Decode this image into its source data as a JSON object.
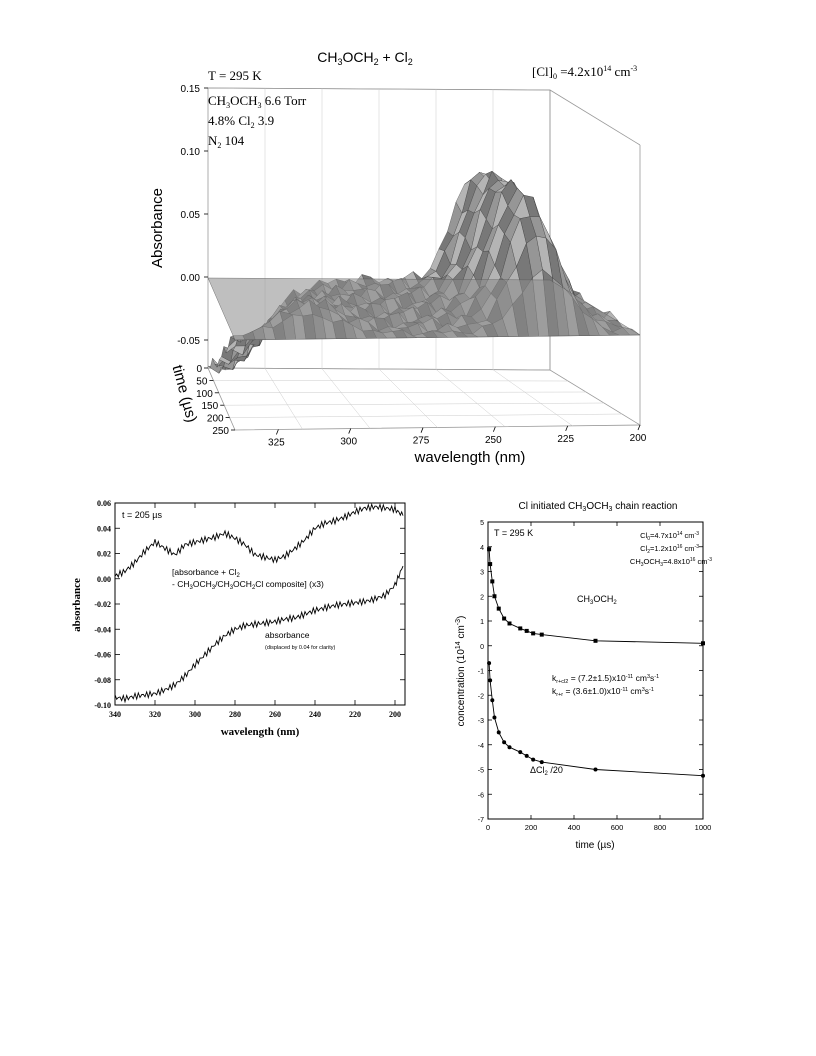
{
  "chart_data": [
    {
      "type": "surface",
      "title_parts": {
        "a": "CH",
        "a_sub": "3",
        "b": "OCH",
        "b_sub": "2",
        "c": " + Cl",
        "c_sub": "2"
      },
      "annotations": {
        "temperature": "T = 295 K",
        "cl0_pre": "[Cl]",
        "cl0_sub": "0",
        "cl0_mid": " =4.2x10",
        "cl0_sup": "14",
        "cl0_post": " cm",
        "cl0_sup2": "-3",
        "mix_line1_a": "CH",
        "mix_line1_sub1": "3",
        "mix_line1_b": "OCH",
        "mix_line1_sub2": "3",
        "mix_line1_c": "  6.6 Torr",
        "mix_line2_a": "4.8% Cl",
        "mix_line2_sub": "2",
        "mix_line2_b": "  3.9",
        "mix_line3": "N",
        "mix_line3_sub": "2",
        "mix_line3_b": "  104"
      },
      "zlabel": "Absorbance",
      "ylabel": "time (µs)",
      "xlabel": "wavelength (nm)",
      "z_ticks": [
        "0.15",
        "0.10",
        "0.05",
        "0.00",
        "-0.05"
      ],
      "z_range": [
        -0.05,
        0.15
      ],
      "time_ticks": [
        "0",
        "50",
        "100",
        "150",
        "200",
        "250"
      ],
      "wavelength_ticks": [
        "325",
        "300",
        "275",
        "250",
        "225",
        "200"
      ],
      "wavelength_range": [
        340,
        200
      ],
      "time_range": [
        0,
        250
      ]
    },
    {
      "type": "line",
      "annotation": "t = 205 µs",
      "xlabel": "wavelength (nm)",
      "ylabel": "absorbance",
      "xlim": [
        340,
        195
      ],
      "ylim": [
        -0.1,
        0.06
      ],
      "x_ticks": [
        "340",
        "320",
        "300",
        "280",
        "260",
        "240",
        "220",
        "200"
      ],
      "y_ticks": [
        "0.06",
        "0.04",
        "0.02",
        "0.00",
        "-0.02",
        "-0.04",
        "-0.06",
        "-0.08",
        "-0.10"
      ],
      "series": [
        {
          "name_line1_a": "[absorbance + Cl",
          "name_line1_sub": "2",
          "name_line2_a": " - CH",
          "name_line2_sub1": "3",
          "name_line2_b": "OCH",
          "name_line2_sub2": "3",
          "name_line2_c": "/CH",
          "name_line2_sub3": "3",
          "name_line2_d": "OCH",
          "name_line2_sub4": "2",
          "name_line2_e": "Cl composite] (x3)",
          "x": [
            340,
            335,
            330,
            325,
            320,
            315,
            310,
            305,
            300,
            295,
            290,
            285,
            280,
            275,
            270,
            265,
            260,
            255,
            250,
            245,
            240,
            235,
            230,
            225,
            220,
            215,
            210,
            205,
            200,
            196
          ],
          "y": [
            0.002,
            0.006,
            0.013,
            0.022,
            0.029,
            0.024,
            0.019,
            0.027,
            0.029,
            0.031,
            0.033,
            0.036,
            0.032,
            0.027,
            0.019,
            0.017,
            0.015,
            0.018,
            0.024,
            0.031,
            0.04,
            0.044,
            0.046,
            0.049,
            0.053,
            0.056,
            0.057,
            0.056,
            0.055,
            0.05
          ]
        },
        {
          "name": "absorbance",
          "note": "(displaced by 0.04 for clarity)",
          "x": [
            340,
            335,
            330,
            325,
            320,
            315,
            310,
            305,
            300,
            295,
            290,
            285,
            280,
            275,
            270,
            265,
            260,
            255,
            250,
            245,
            240,
            235,
            230,
            225,
            220,
            215,
            210,
            205,
            200,
            196
          ],
          "y": [
            -0.094,
            -0.095,
            -0.093,
            -0.092,
            -0.091,
            -0.088,
            -0.084,
            -0.077,
            -0.068,
            -0.06,
            -0.052,
            -0.045,
            -0.04,
            -0.037,
            -0.036,
            -0.035,
            -0.034,
            -0.032,
            -0.031,
            -0.028,
            -0.025,
            -0.023,
            -0.021,
            -0.02,
            -0.019,
            -0.018,
            -0.016,
            -0.013,
            -0.005,
            0.01
          ]
        }
      ]
    },
    {
      "type": "scatter",
      "title_a": "Cl initiated CH",
      "title_sub1": "3",
      "title_b": "OCH",
      "title_sub2": "3",
      "title_c": " chain reaction",
      "annotations": {
        "temperature": "T = 295 K",
        "cl0_a": "Cl",
        "cl0_sub": "0",
        "cl0_b": "=4.7x10",
        "cl0_sup": "14",
        "cl0_c": " cm",
        "cl0_sup2": "-3",
        "cl2_a": "Cl",
        "cl2_sub": "2",
        "cl2_b": "=1.2x10",
        "cl2_sup": "16",
        "cl2_c": " cm",
        "cl2_sup2": "-3",
        "dme_a": "CH",
        "dme_sub1": "3",
        "dme_b": "OCH",
        "dme_sub2": "3",
        "dme_c": "=4.8x10",
        "dme_sup": "16",
        "dme_d": " cm",
        "dme_sup2": "-3",
        "k1_a": "k",
        "k1_sub": "r+cl2",
        "k1_b": " = (7.2±1.5)x10",
        "k1_sup": "-11",
        "k1_c": " cm",
        "k1_sup2": "3",
        "k1_d": "s",
        "k1_sup3": "-1",
        "k2_a": "k",
        "k2_sub": "r+r",
        "k2_b": " = (3.6±1.0)x10",
        "k2_sup": "-11",
        "k2_c": " cm",
        "k2_sup2": "3",
        "k2_d": "s",
        "k2_sup3": "-1"
      },
      "xlabel": "time (µs)",
      "ylabel_a": "concentration (10",
      "ylabel_sup": "14",
      "ylabel_b": " cm",
      "ylabel_sup2": "-3",
      "ylabel_c": ")",
      "xlim": [
        0,
        1000
      ],
      "ylim": [
        -7,
        5
      ],
      "x_ticks": [
        "0",
        "200",
        "400",
        "600",
        "800",
        "1000"
      ],
      "y_ticks": [
        "5",
        "4",
        "3",
        "2",
        "1",
        "0",
        "-1",
        "-2",
        "-3",
        "-4",
        "-5",
        "-6",
        "-7"
      ],
      "series": [
        {
          "name_a": "CH",
          "name_sub1": "3",
          "name_b": "OCH",
          "name_sub2": "2",
          "marker": "square",
          "x": [
            5,
            10,
            20,
            30,
            50,
            75,
            100,
            150,
            180,
            210,
            250,
            500,
            1000
          ],
          "y": [
            3.9,
            3.3,
            2.6,
            2.0,
            1.5,
            1.1,
            0.9,
            0.7,
            0.6,
            0.5,
            0.45,
            0.2,
            0.1
          ]
        },
        {
          "name_a": "ΔCl",
          "name_sub": "2",
          "name_b": " /20",
          "marker": "circle",
          "x": [
            5,
            10,
            20,
            30,
            50,
            75,
            100,
            150,
            180,
            210,
            250,
            500,
            1000
          ],
          "y": [
            -0.7,
            -1.4,
            -2.2,
            -2.9,
            -3.5,
            -3.9,
            -4.1,
            -4.3,
            -4.45,
            -4.6,
            -4.7,
            -5.0,
            -5.25
          ]
        }
      ]
    }
  ]
}
